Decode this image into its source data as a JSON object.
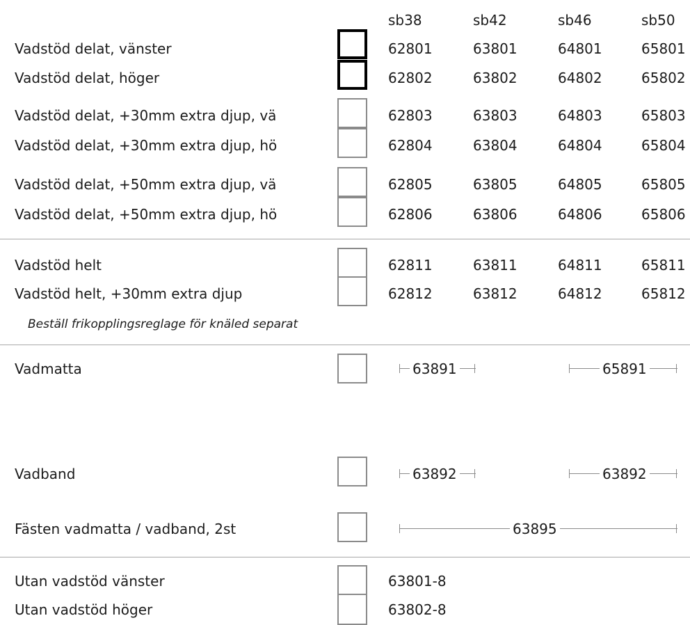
{
  "columns": [
    "sb38",
    "sb42",
    "sb46",
    "sb50"
  ],
  "rows": [
    {
      "label": "Vadstöd delat, vänster",
      "codes": [
        "62801",
        "63801",
        "64801",
        "65801"
      ]
    },
    {
      "label": "Vadstöd delat, höger",
      "codes": [
        "62802",
        "63802",
        "64802",
        "65802"
      ]
    },
    {
      "label": "Vadstöd delat, +30mm extra djup, vä",
      "codes": [
        "62803",
        "63803",
        "64803",
        "65803"
      ]
    },
    {
      "label": "Vadstöd delat, +30mm extra djup, hö",
      "codes": [
        "62804",
        "63804",
        "64804",
        "65804"
      ]
    },
    {
      "label": "Vadstöd delat, +50mm extra djup, vä",
      "codes": [
        "62805",
        "63805",
        "64805",
        "65805"
      ]
    },
    {
      "label": "Vadstöd delat, +50mm extra djup, hö",
      "codes": [
        "62806",
        "63806",
        "64806",
        "65806"
      ]
    },
    {
      "label": "Vadstöd helt",
      "codes": [
        "62811",
        "63811",
        "64811",
        "65811"
      ]
    },
    {
      "label": "Vadstöd helt, +30mm extra djup",
      "codes": [
        "62812",
        "63812",
        "64812",
        "65812"
      ]
    }
  ],
  "note": "Beställ frikopplingsreglage för knäled separat",
  "vadmatta": {
    "label": "Vadmatta",
    "code_a": "63891",
    "code_b": "65891"
  },
  "vadband": {
    "label": "Vadband",
    "code_a": "63892",
    "code_b": "63892"
  },
  "fasten": {
    "label": "Fästen vadmatta / vadband, 2st",
    "code": "63895"
  },
  "utan": [
    {
      "label": "Utan vadstöd vänster",
      "code": "63801-8"
    },
    {
      "label": "Utan vadstöd höger",
      "code": "63802-8"
    }
  ]
}
